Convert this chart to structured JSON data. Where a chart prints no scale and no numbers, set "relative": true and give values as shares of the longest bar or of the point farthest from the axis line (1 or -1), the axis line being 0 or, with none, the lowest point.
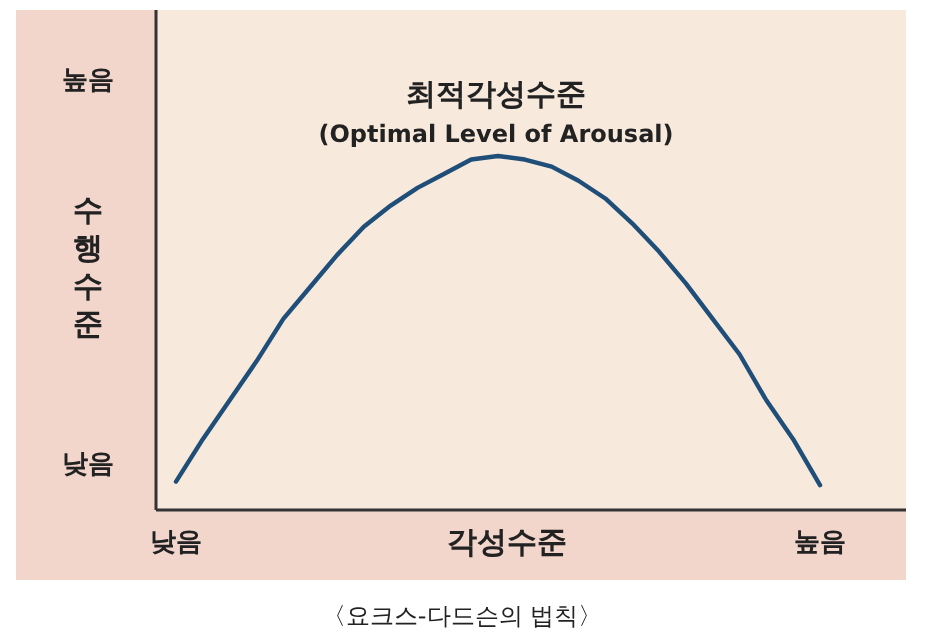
{
  "chart_data": {
    "type": "line",
    "relative": true,
    "xlabel": "각성수준",
    "ylabel": "수행수준",
    "categories": [
      "낮음",
      null,
      null,
      null,
      null,
      null,
      null,
      null,
      null,
      null,
      null,
      null,
      null,
      null,
      null,
      null,
      null,
      null,
      null,
      null,
      null,
      null,
      null,
      null,
      "높음"
    ],
    "series": [
      {
        "color": "#1f4e79",
        "values": [
          0.08,
          0.2,
          0.31,
          0.42,
          0.54,
          0.63,
          0.72,
          0.8,
          0.86,
          0.91,
          0.95,
          0.99,
          1,
          0.99,
          0.97,
          0.93,
          0.88,
          0.81,
          0.73,
          0.64,
          0.54,
          0.44,
          0.31,
          0.2,
          0.07
        ]
      }
    ],
    "annotations": [
      "최적각성수준",
      "(Optimal Level of Arousal)",
      "높음",
      "낮음",
      "〈요크스-다드슨의 법칙〉"
    ],
    "grid": false,
    "marker": "none",
    "line_style": "solid"
  }
}
